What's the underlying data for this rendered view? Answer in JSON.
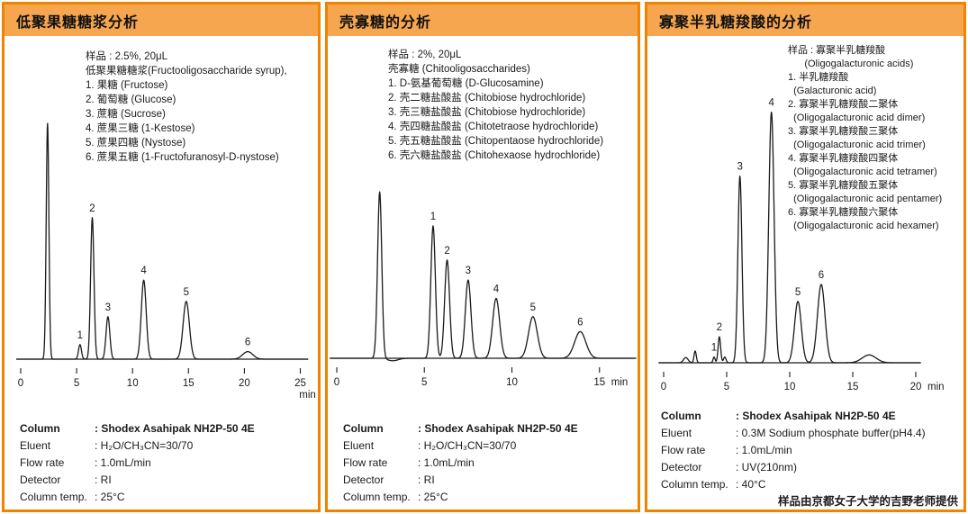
{
  "accent": {
    "header_bg": "#F6A64F",
    "panel_border": "#F08300",
    "line_color": "#1a1a1a"
  },
  "panels": [
    {
      "title": "低聚果糖糖浆分析",
      "sample_lines": [
        "样品 : 2.5%, 20μL",
        "低聚果糖糖浆(Fructooligosaccharide syrup),",
        "1. 果糖 (Fructose)",
        "2. 葡萄糖 (Glucose)",
        "3. 蔗糖 (Sucrose)",
        "4. 蔗果三糖 (1-Kestose)",
        "5. 蔗果四糖 (Nystose)",
        "6. 蔗果五糖 (1-Fructofuranosyl-D-nystose)"
      ],
      "conditions": [
        {
          "label": "Column",
          "value": ": Shodex Asahipak NH2P-50 4E",
          "bold": true
        },
        {
          "label": "Eluent",
          "value": ": H₂O/CH₃CN=30/70",
          "bold": false
        },
        {
          "label": "Flow rate",
          "value": ": 1.0mL/min",
          "bold": false
        },
        {
          "label": "Detector",
          "value": ": RI",
          "bold": false
        },
        {
          "label": "Column temp.",
          "value": ": 25°C",
          "bold": false
        }
      ],
      "note": ""
    },
    {
      "title": "壳寡糖的分析",
      "sample_lines": [
        "样品 : 2%, 20μL",
        "壳寡糖 (Chitooligosaccharides)",
        "1. D-氨基葡萄糖 (D-Glucosamine)",
        "2. 壳二糖盐酸盐 (Chitobiose hydrochloride)",
        "3. 壳三糖盐酸盐 (Chitobiose hydrochloride)",
        "4. 壳四糖盐酸盐 (Chitotetraose hydrochloride)",
        "5. 壳五糖盐酸盐 (Chitopentaose hydrochloride)",
        "6. 壳六糖盐酸盐 (Chitohexaose hydrochloride)"
      ],
      "conditions": [
        {
          "label": "Column",
          "value": ": Shodex Asahipak NH2P-50 4E",
          "bold": true
        },
        {
          "label": "Eluent",
          "value": ": H₂O/CH₃CN=30/70",
          "bold": false
        },
        {
          "label": "Flow rate",
          "value": ": 1.0mL/min",
          "bold": false
        },
        {
          "label": "Detector",
          "value": ": RI",
          "bold": false
        },
        {
          "label": "Column temp.",
          "value": ": 25°C",
          "bold": false
        }
      ],
      "note": ""
    },
    {
      "title": "寡聚半乳糖羧酸的分析",
      "sample_lines": [
        "样品 : 寡聚半乳糖羧酸",
        "      (Oligogalacturonic acids)",
        "1. 半乳糖羧酸",
        "  (Galacturonic acid)",
        "2. 寡聚半乳糖羧酸二聚体",
        "  (Oligogalacturonic acid dimer)",
        "3. 寡聚半乳糖羧酸三聚体",
        "  (Oligogalacturonic acid trimer)",
        "4. 寡聚半乳糖羧酸四聚体",
        "  (Oligogalacturonic acid tetramer)",
        "5. 寡聚半乳糖羧酸五聚体",
        "  (Oligogalacturonic acid pentamer)",
        "6. 寡聚半乳糖羧酸六聚体",
        "  (Oligogalacturonic acid hexamer)"
      ],
      "conditions": [
        {
          "label": "Column",
          "value": ": Shodex Asahipak NH2P-50 4E",
          "bold": true
        },
        {
          "label": "Eluent",
          "value": ": 0.3M Sodium phosphate buffer(pH4.4)",
          "bold": false
        },
        {
          "label": "Flow rate",
          "value": ": 1.0mL/min",
          "bold": false
        },
        {
          "label": "Detector",
          "value": ": UV(210nm)",
          "bold": false
        },
        {
          "label": "Column temp.",
          "value": ": 40°C",
          "bold": false
        }
      ],
      "note": "样品由京都女子大学的吉野老师提供"
    }
  ],
  "chart_data": [
    {
      "type": "line",
      "title": "低聚果糖糖浆分析 (Fructooligosaccharide syrup chromatogram)",
      "xlabel": "min",
      "xlim": [
        0,
        25.7
      ],
      "x_ticks": [
        0,
        5,
        10,
        15,
        20,
        25
      ],
      "grid": false,
      "legend": "none",
      "peaks": [
        {
          "label": "",
          "retention_min": 2.4,
          "rel_height": 1.0,
          "sigma_min": 0.12
        },
        {
          "label": "1",
          "retention_min": 5.3,
          "rel_height": 0.062,
          "sigma_min": 0.13
        },
        {
          "label": "2",
          "retention_min": 6.4,
          "rel_height": 0.6,
          "sigma_min": 0.15
        },
        {
          "label": "3",
          "retention_min": 7.8,
          "rel_height": 0.18,
          "sigma_min": 0.17
        },
        {
          "label": "4",
          "retention_min": 11.0,
          "rel_height": 0.335,
          "sigma_min": 0.22
        },
        {
          "label": "5",
          "retention_min": 14.8,
          "rel_height": 0.245,
          "sigma_min": 0.28
        },
        {
          "label": "6",
          "retention_min": 20.3,
          "rel_height": 0.032,
          "sigma_min": 0.45
        }
      ]
    },
    {
      "type": "line",
      "title": "壳寡糖的分析 (Chitooligosaccharides chromatogram)",
      "xlabel": "min",
      "xlim": [
        0,
        17.1
      ],
      "x_ticks": [
        0,
        5,
        10,
        15
      ],
      "grid": false,
      "legend": "none",
      "peaks": [
        {
          "label": "",
          "retention_min": 2.45,
          "rel_height": 1.0,
          "sigma_min": 0.12
        },
        {
          "label": "",
          "retention_min": 3.2,
          "rel_height": -0.015,
          "sigma_min": 0.3
        },
        {
          "label": "1",
          "retention_min": 5.5,
          "rel_height": 0.795,
          "sigma_min": 0.13
        },
        {
          "label": "2",
          "retention_min": 6.3,
          "rel_height": 0.59,
          "sigma_min": 0.14
        },
        {
          "label": "3",
          "retention_min": 7.5,
          "rel_height": 0.47,
          "sigma_min": 0.16
        },
        {
          "label": "4",
          "retention_min": 9.1,
          "rel_height": 0.36,
          "sigma_min": 0.2
        },
        {
          "label": "5",
          "retention_min": 11.2,
          "rel_height": 0.25,
          "sigma_min": 0.25
        },
        {
          "label": "6",
          "retention_min": 13.9,
          "rel_height": 0.16,
          "sigma_min": 0.32
        }
      ]
    },
    {
      "type": "line",
      "title": "寡聚半乳糖羧酸的分析 (Oligogalacturonic acids chromatogram)",
      "xlabel": "min",
      "xlim": [
        0,
        20.4
      ],
      "x_ticks": [
        0,
        5,
        10,
        15,
        20
      ],
      "grid": false,
      "legend": "none",
      "peaks": [
        {
          "label": "",
          "retention_min": 1.76,
          "rel_height": 0.02,
          "sigma_min": 0.18
        },
        {
          "label": "",
          "retention_min": 2.5,
          "rel_height": 0.045,
          "sigma_min": 0.09
        },
        {
          "label": "1",
          "retention_min": 4.0,
          "rel_height": 0.022,
          "sigma_min": 0.08
        },
        {
          "label": "2",
          "retention_min": 4.42,
          "rel_height": 0.1,
          "sigma_min": 0.1
        },
        {
          "label": "",
          "retention_min": 4.85,
          "rel_height": 0.022,
          "sigma_min": 0.1
        },
        {
          "label": "3",
          "retention_min": 6.05,
          "rel_height": 0.715,
          "sigma_min": 0.16
        },
        {
          "label": "4",
          "retention_min": 8.55,
          "rel_height": 0.96,
          "sigma_min": 0.21
        },
        {
          "label": "5",
          "retention_min": 10.65,
          "rel_height": 0.235,
          "sigma_min": 0.27
        },
        {
          "label": "6",
          "retention_min": 12.5,
          "rel_height": 0.3,
          "sigma_min": 0.3
        },
        {
          "label": "",
          "retention_min": 16.3,
          "rel_height": 0.03,
          "sigma_min": 0.55
        }
      ]
    }
  ]
}
